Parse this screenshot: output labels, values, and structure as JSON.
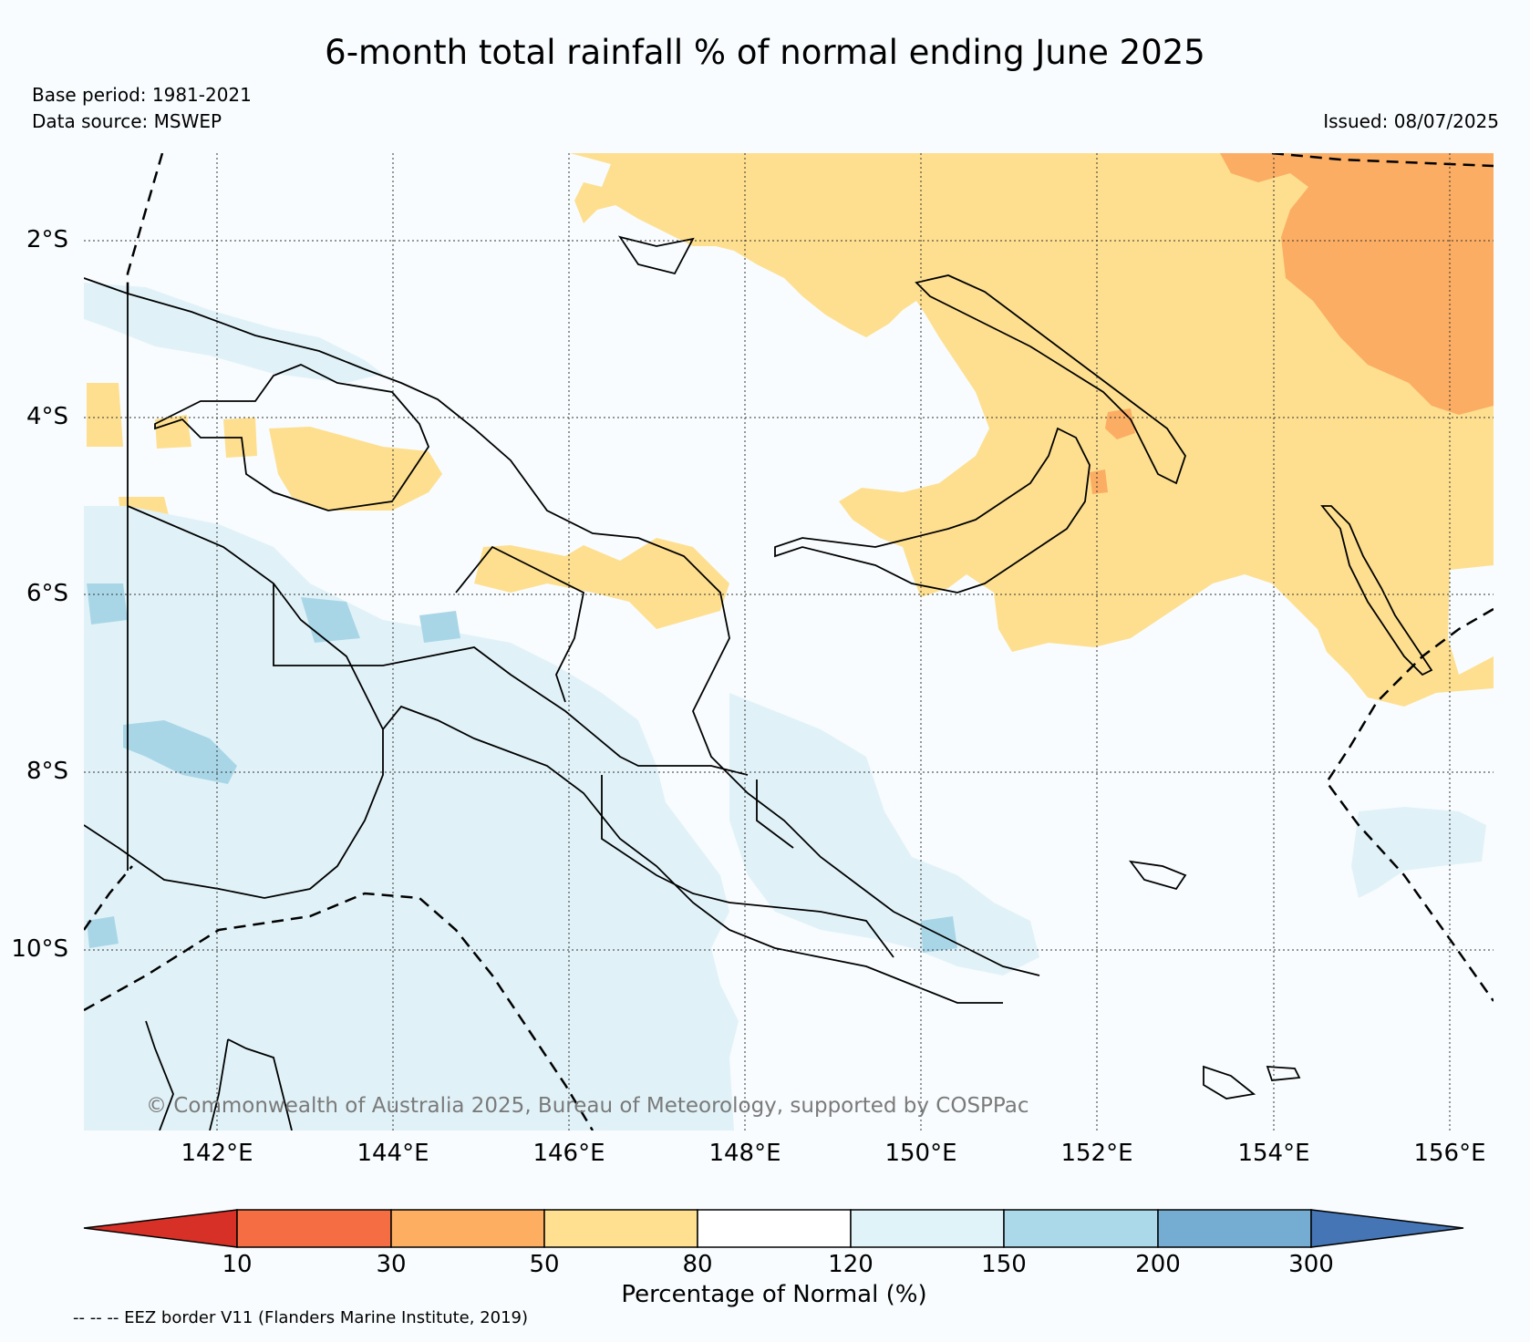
{
  "header": {
    "title": "6-month total rainfall % of normal ending June 2025",
    "base_period": "Base period: 1981-2021",
    "data_source": "Data source: MSWEP",
    "issued": "Issued: 08/07/2025"
  },
  "map": {
    "lat_labels": [
      "2°S",
      "4°S",
      "6°S",
      "8°S",
      "10°S"
    ],
    "lon_labels": [
      "142°E",
      "144°E",
      "146°E",
      "148°E",
      "150°E",
      "152°E",
      "154°E",
      "156°E"
    ],
    "copyright": "© Commonwealth of Australia 2025, Bureau of Meteorology, supported by COSPPac",
    "colors": {
      "ocean_normal": "#f8fcfe",
      "below_50_80": "#fddf8f",
      "below_30_50": "#fbad63",
      "below_10_30": "#f26b43",
      "above_120_150": "#e0f2f8",
      "above_150_200": "#a9d6e7",
      "above_200_300": "#74a9cf"
    }
  },
  "colorbar": {
    "title": "Percentage of Normal (%)",
    "tick_labels": [
      "10",
      "30",
      "50",
      "80",
      "120",
      "150",
      "200",
      "300"
    ],
    "segment_colors": [
      "#d73027",
      "#f46d43",
      "#fdae61",
      "#fee090",
      "#ffffff",
      "#e0f3f8",
      "#abd9e9",
      "#74add1",
      "#4575b4"
    ]
  },
  "footer": {
    "eez_note": "-- -- -- EEZ border V11 (Flanders Marine Institute, 2019)"
  }
}
